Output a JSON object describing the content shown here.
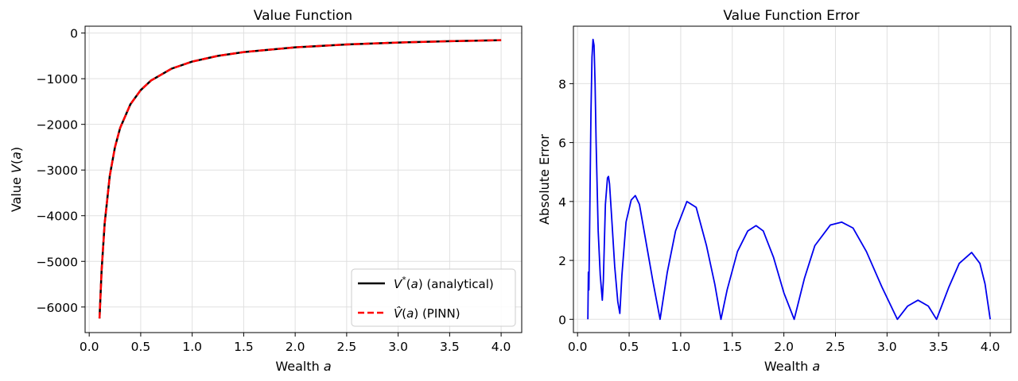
{
  "chart_data": [
    {
      "type": "line",
      "title": "Value Function",
      "xlabel": "Wealth a",
      "ylabel": "Value V(a)",
      "xlim": [
        -0.04,
        4.2
      ],
      "ylim": [
        -6560,
        150
      ],
      "xticks": [
        0.0,
        0.5,
        1.0,
        1.5,
        2.0,
        2.5,
        3.0,
        3.5,
        4.0
      ],
      "yticks": [
        -6000,
        -5000,
        -4000,
        -3000,
        -2000,
        -1000,
        0
      ],
      "xtick_labels": [
        "0.0",
        "0.5",
        "1.0",
        "1.5",
        "2.0",
        "2.5",
        "3.0",
        "3.5",
        "4.0"
      ],
      "ytick_labels": [
        "−6000",
        "−5000",
        "−4000",
        "−3000",
        "−2000",
        "−1000",
        "0"
      ],
      "grid": true,
      "legend": "lower-right",
      "series": [
        {
          "name": "V*(a) (analytical)",
          "color": "#000000",
          "style": "solid",
          "x": [
            0.1,
            0.12,
            0.15,
            0.2,
            0.25,
            0.3,
            0.4,
            0.5,
            0.6,
            0.8,
            1.0,
            1.25,
            1.5,
            2.0,
            2.5,
            3.0,
            3.5,
            4.0
          ],
          "y": [
            -6250,
            -5210,
            -4170,
            -3120,
            -2500,
            -2080,
            -1560,
            -1250,
            -1040,
            -780,
            -625,
            -500,
            -417,
            -313,
            -250,
            -208,
            -179,
            -156
          ]
        },
        {
          "name": "V̂(a) (PINN)",
          "color": "#ff0000",
          "style": "dashed",
          "x": [
            0.1,
            0.12,
            0.15,
            0.2,
            0.25,
            0.3,
            0.4,
            0.5,
            0.6,
            0.8,
            1.0,
            1.25,
            1.5,
            2.0,
            2.5,
            3.0,
            3.5,
            4.0
          ],
          "y": [
            -6250,
            -5210,
            -4170,
            -3120,
            -2500,
            -2080,
            -1560,
            -1250,
            -1040,
            -780,
            -625,
            -500,
            -417,
            -313,
            -250,
            -208,
            -179,
            -156
          ]
        }
      ]
    },
    {
      "type": "line",
      "title": "Value Function Error",
      "xlabel": "Wealth a",
      "ylabel": "Absolute Error",
      "xlim": [
        -0.04,
        4.2
      ],
      "ylim": [
        -0.45,
        9.95
      ],
      "xticks": [
        0.0,
        0.5,
        1.0,
        1.5,
        2.0,
        2.5,
        3.0,
        3.5,
        4.0
      ],
      "yticks": [
        0,
        2,
        4,
        6,
        8
      ],
      "xtick_labels": [
        "0.0",
        "0.5",
        "1.0",
        "1.5",
        "2.0",
        "2.5",
        "3.0",
        "3.5",
        "4.0"
      ],
      "ytick_labels": [
        "0",
        "2",
        "4",
        "6",
        "8"
      ],
      "grid": true,
      "series": [
        {
          "color": "#0000ee",
          "style": "solid",
          "x": [
            0.1,
            0.105,
            0.11,
            0.115,
            0.12,
            0.13,
            0.14,
            0.15,
            0.16,
            0.17,
            0.18,
            0.2,
            0.22,
            0.24,
            0.25,
            0.27,
            0.29,
            0.3,
            0.31,
            0.33,
            0.36,
            0.39,
            0.41,
            0.43,
            0.47,
            0.52,
            0.56,
            0.6,
            0.66,
            0.73,
            0.8,
            0.87,
            0.95,
            1.06,
            1.15,
            1.25,
            1.33,
            1.39,
            1.45,
            1.55,
            1.65,
            1.73,
            1.8,
            1.9,
            2.0,
            2.1,
            2.2,
            2.3,
            2.45,
            2.56,
            2.67,
            2.8,
            2.95,
            3.1,
            3.2,
            3.3,
            3.4,
            3.48,
            3.6,
            3.7,
            3.82,
            3.9,
            3.95,
            4.0
          ],
          "y": [
            0.0,
            1.6,
            1.0,
            2.5,
            4.0,
            7.0,
            8.9,
            9.5,
            9.3,
            8.0,
            6.0,
            3.0,
            1.5,
            0.65,
            1.3,
            3.9,
            4.8,
            4.85,
            4.6,
            3.5,
            1.8,
            0.6,
            0.2,
            1.5,
            3.3,
            4.05,
            4.2,
            3.9,
            2.7,
            1.3,
            0.0,
            1.6,
            3.0,
            4.0,
            3.8,
            2.5,
            1.2,
            0.0,
            1.0,
            2.3,
            3.0,
            3.18,
            3.0,
            2.1,
            0.9,
            0.0,
            1.4,
            2.5,
            3.2,
            3.3,
            3.1,
            2.3,
            1.1,
            0.0,
            0.45,
            0.65,
            0.45,
            0.0,
            1.1,
            1.9,
            2.27,
            1.9,
            1.2,
            0.0
          ]
        }
      ]
    }
  ]
}
